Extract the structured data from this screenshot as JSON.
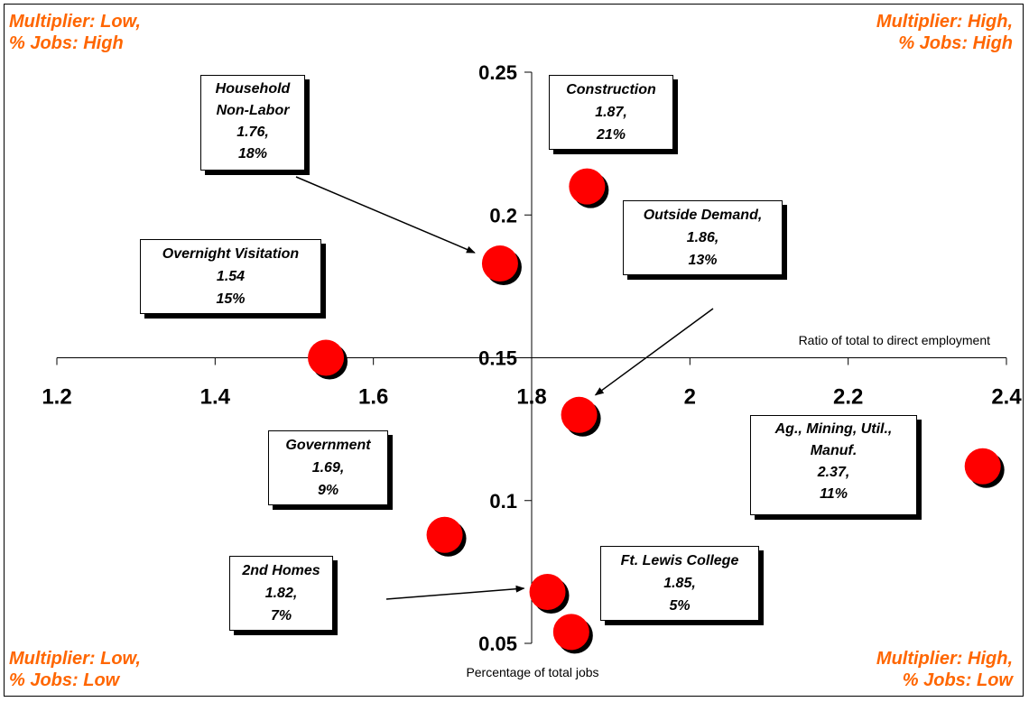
{
  "quadrant_labels": {
    "top_left": [
      "Multiplier: Low,",
      "% Jobs: High"
    ],
    "top_right": [
      "Multiplier: High,",
      "% Jobs: High"
    ],
    "bottom_left": [
      "Multiplier: Low,",
      "% Jobs: Low"
    ],
    "bottom_right": [
      "Multiplier: High,",
      "% Jobs: Low"
    ]
  },
  "colors": {
    "quadrant_text": "#FF6600",
    "point_fill": "#FF0000",
    "point_shadow": "#000000"
  },
  "chart_data": {
    "type": "scatter",
    "xlabel": "Ratio of total to direct employment",
    "ylabel": "Percentage of total jobs",
    "xlim": [
      1.2,
      2.4
    ],
    "ylim": [
      0.05,
      0.25
    ],
    "axes_cross": {
      "x": 1.8,
      "y": 0.15
    },
    "x_ticks": [
      "1.2",
      "1.4",
      "1.6",
      "1.8",
      "2",
      "2.2",
      "2.4"
    ],
    "y_ticks": [
      "0.05",
      "0.1",
      "0.15",
      "0.2",
      "0.25"
    ],
    "grid": false,
    "legend": "none",
    "points": [
      {
        "x": 1.87,
        "y": 0.21,
        "label": [
          "Construction",
          "1.87,",
          "21%"
        ]
      },
      {
        "x": 1.76,
        "y": 0.183,
        "label": [
          "Household",
          "Non-Labor",
          "1.76,",
          "18%"
        ]
      },
      {
        "x": 1.86,
        "y": 0.13,
        "label": [
          "Outside Demand,",
          "1.86,",
          "13%"
        ]
      },
      {
        "x": 1.54,
        "y": 0.15,
        "label": [
          "Overnight Visitation",
          "1.54",
          "15%"
        ]
      },
      {
        "x": 2.37,
        "y": 0.112,
        "label": [
          "Ag., Mining, Util.,",
          "Manuf.",
          "2.37,",
          "11%"
        ]
      },
      {
        "x": 1.69,
        "y": 0.088,
        "label": [
          "Government",
          "1.69,",
          "9%"
        ]
      },
      {
        "x": 1.82,
        "y": 0.068,
        "label": [
          "2nd Homes",
          "1.82,",
          "7%"
        ]
      },
      {
        "x": 1.85,
        "y": 0.054,
        "label": [
          "Ft. Lewis College",
          "1.85,",
          "5%"
        ]
      }
    ]
  }
}
